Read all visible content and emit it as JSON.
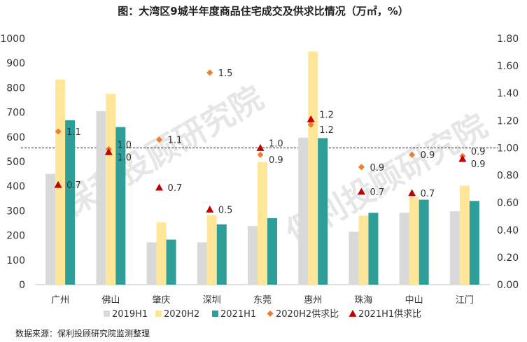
{
  "chart_data": {
    "type": "bar",
    "title": "图：大湾区9城半年度商品住宅成交及供求比情况（万㎡，%）",
    "source": "数据来源：保利投顾研究院监测整理",
    "watermark": "保利投顾研究院",
    "categories": [
      "广州",
      "佛山",
      "肇庆",
      "深圳",
      "东莞",
      "惠州",
      "珠海",
      "中山",
      "江门"
    ],
    "series": [
      {
        "name": "2019H1",
        "type": "bar",
        "axis": "left",
        "color": "#d9d9d9",
        "values": [
          450,
          705,
          172,
          172,
          238,
          597,
          215,
          292,
          298
        ]
      },
      {
        "name": "2020H2",
        "type": "bar",
        "axis": "left",
        "color": "#ffe699",
        "values": [
          833,
          775,
          253,
          283,
          498,
          947,
          280,
          357,
          402
        ]
      },
      {
        "name": "2021H1",
        "type": "bar",
        "axis": "left",
        "color": "#2e9e99",
        "values": [
          668,
          640,
          183,
          245,
          270,
          595,
          292,
          345,
          340
        ]
      },
      {
        "name": "2020H2供求比",
        "type": "scatter",
        "axis": "right",
        "marker": "diamond",
        "color": "#ed7d31",
        "values": [
          1.12,
          0.99,
          1.06,
          1.55,
          0.95,
          1.17,
          0.86,
          0.95,
          0.94
        ],
        "labels": [
          "1.1",
          "1.0",
          "1.1",
          "1.5",
          "0.9",
          "1.2",
          "0.9",
          "0.9",
          "0.9"
        ]
      },
      {
        "name": "2021H1供求比",
        "type": "scatter",
        "axis": "right",
        "marker": "triangle",
        "color": "#c00000",
        "values": [
          0.73,
          0.97,
          0.71,
          0.55,
          1.0,
          1.21,
          0.68,
          0.67,
          0.92
        ],
        "labels": [
          "0.7",
          "1.0",
          "0.7",
          "0.5",
          "1.0",
          "1.2",
          "0.7",
          "0.7",
          "0.9"
        ]
      }
    ],
    "y_left": {
      "min": 0,
      "max": 1000,
      "ticks": [
        "0",
        "100",
        "200",
        "300",
        "400",
        "500",
        "600",
        "700",
        "800",
        "900",
        "1000"
      ]
    },
    "y_right": {
      "min": 0,
      "max": 1.8,
      "ticks": [
        "0.00",
        "0.20",
        "0.40",
        "0.60",
        "0.80",
        "1.00",
        "1.20",
        "1.40",
        "1.60",
        "1.80"
      ]
    },
    "reference_line": {
      "axis": "right",
      "value": 1.0,
      "style": "dashed"
    },
    "legend": {
      "position": "bottom"
    }
  }
}
